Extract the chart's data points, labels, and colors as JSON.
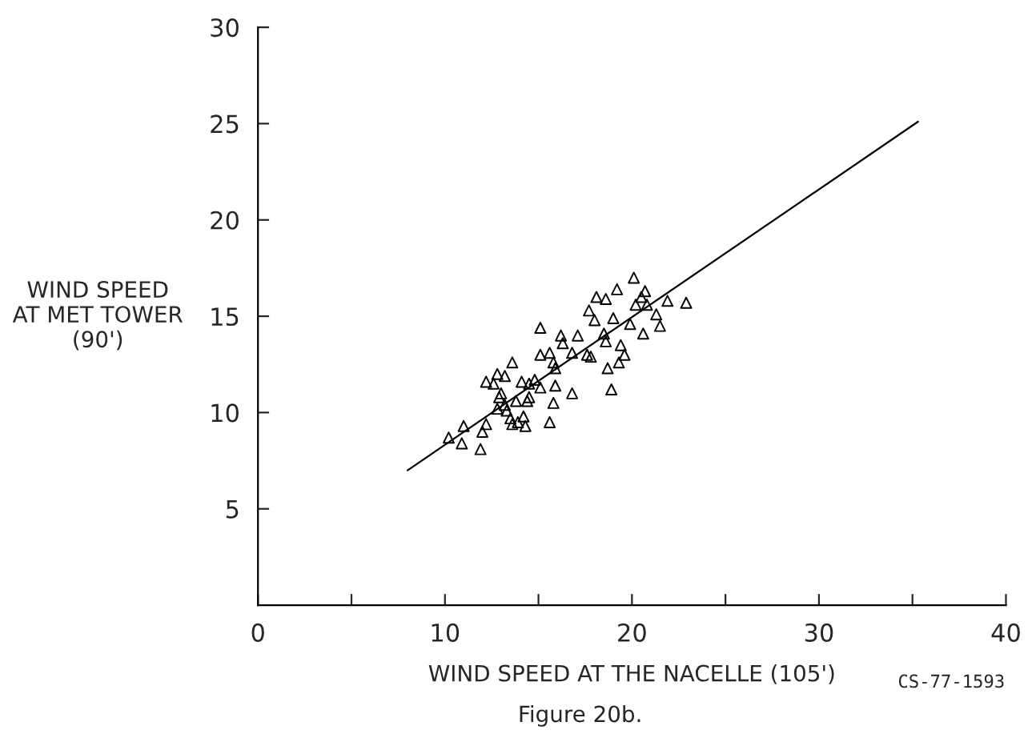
{
  "chart_data": {
    "type": "scatter",
    "xlabel": "WIND SPEED AT THE NACELLE (105')",
    "ylabel": "WIND SPEED\nAT MET TOWER\n(90')",
    "annotations": [
      "CS-77-1593",
      "Figure 20b."
    ],
    "xlim": [
      0,
      40
    ],
    "ylim": [
      0,
      30
    ],
    "xticks": [
      0,
      {
        "value": 5,
        "label": null
      },
      10,
      {
        "value": 15,
        "label": null
      },
      20,
      {
        "value": 25,
        "label": null
      },
      30,
      {
        "value": 35,
        "label": null
      },
      40
    ],
    "yticks": [
      5,
      10,
      15,
      20,
      25,
      30
    ],
    "grid": false,
    "legend": false,
    "marker": "triangle",
    "series": [
      {
        "color": "#000000",
        "x": [
          10.2,
          10.9,
          11.0,
          11.9,
          12.0,
          12.2,
          12.8,
          12.9,
          12.6,
          12.8,
          13.2,
          13.6,
          13.3,
          13.5,
          13.6,
          13.9,
          14.2,
          14.3,
          14.1,
          14.5,
          14.8,
          14.5,
          15.1,
          15.9,
          15.1,
          15.1,
          15.6,
          15.8,
          15.9,
          15.8,
          15.6,
          16.2,
          16.3,
          16.8,
          17.1,
          16.8,
          17.6,
          17.8,
          17.7,
          18.0,
          18.1,
          18.6,
          18.5,
          18.6,
          18.7,
          18.9,
          19.0,
          19.2,
          19.4,
          19.6,
          19.3,
          20.1,
          19.9,
          20.2,
          20.5,
          20.7,
          20.8,
          20.6,
          21.3,
          21.5,
          21.9,
          22.9,
          12.2,
          13.0,
          13.8,
          14.4,
          13.2
        ],
        "values": [
          8.7,
          8.4,
          9.3,
          8.1,
          9.0,
          9.4,
          10.2,
          10.8,
          11.5,
          12.0,
          11.9,
          12.6,
          10.1,
          9.7,
          9.4,
          9.5,
          9.8,
          9.3,
          11.6,
          11.5,
          11.7,
          10.8,
          11.3,
          11.4,
          14.4,
          13.0,
          13.1,
          12.6,
          12.3,
          10.5,
          9.5,
          14.0,
          13.6,
          13.1,
          14.0,
          11.0,
          13.0,
          12.9,
          15.3,
          14.8,
          16.0,
          15.9,
          14.1,
          13.7,
          12.3,
          11.2,
          14.9,
          16.4,
          13.5,
          13.0,
          12.6,
          17.0,
          14.6,
          15.6,
          16.0,
          16.3,
          15.6,
          14.1,
          15.1,
          14.5,
          15.8,
          15.7,
          11.6,
          11.0,
          10.6,
          10.6,
          10.4
        ]
      },
      {
        "type": "line",
        "color": "#000000",
        "marker": "none",
        "line_style": "solid",
        "x": [
          8.0,
          35.3
        ],
        "values": [
          7.0,
          25.1
        ]
      }
    ]
  }
}
